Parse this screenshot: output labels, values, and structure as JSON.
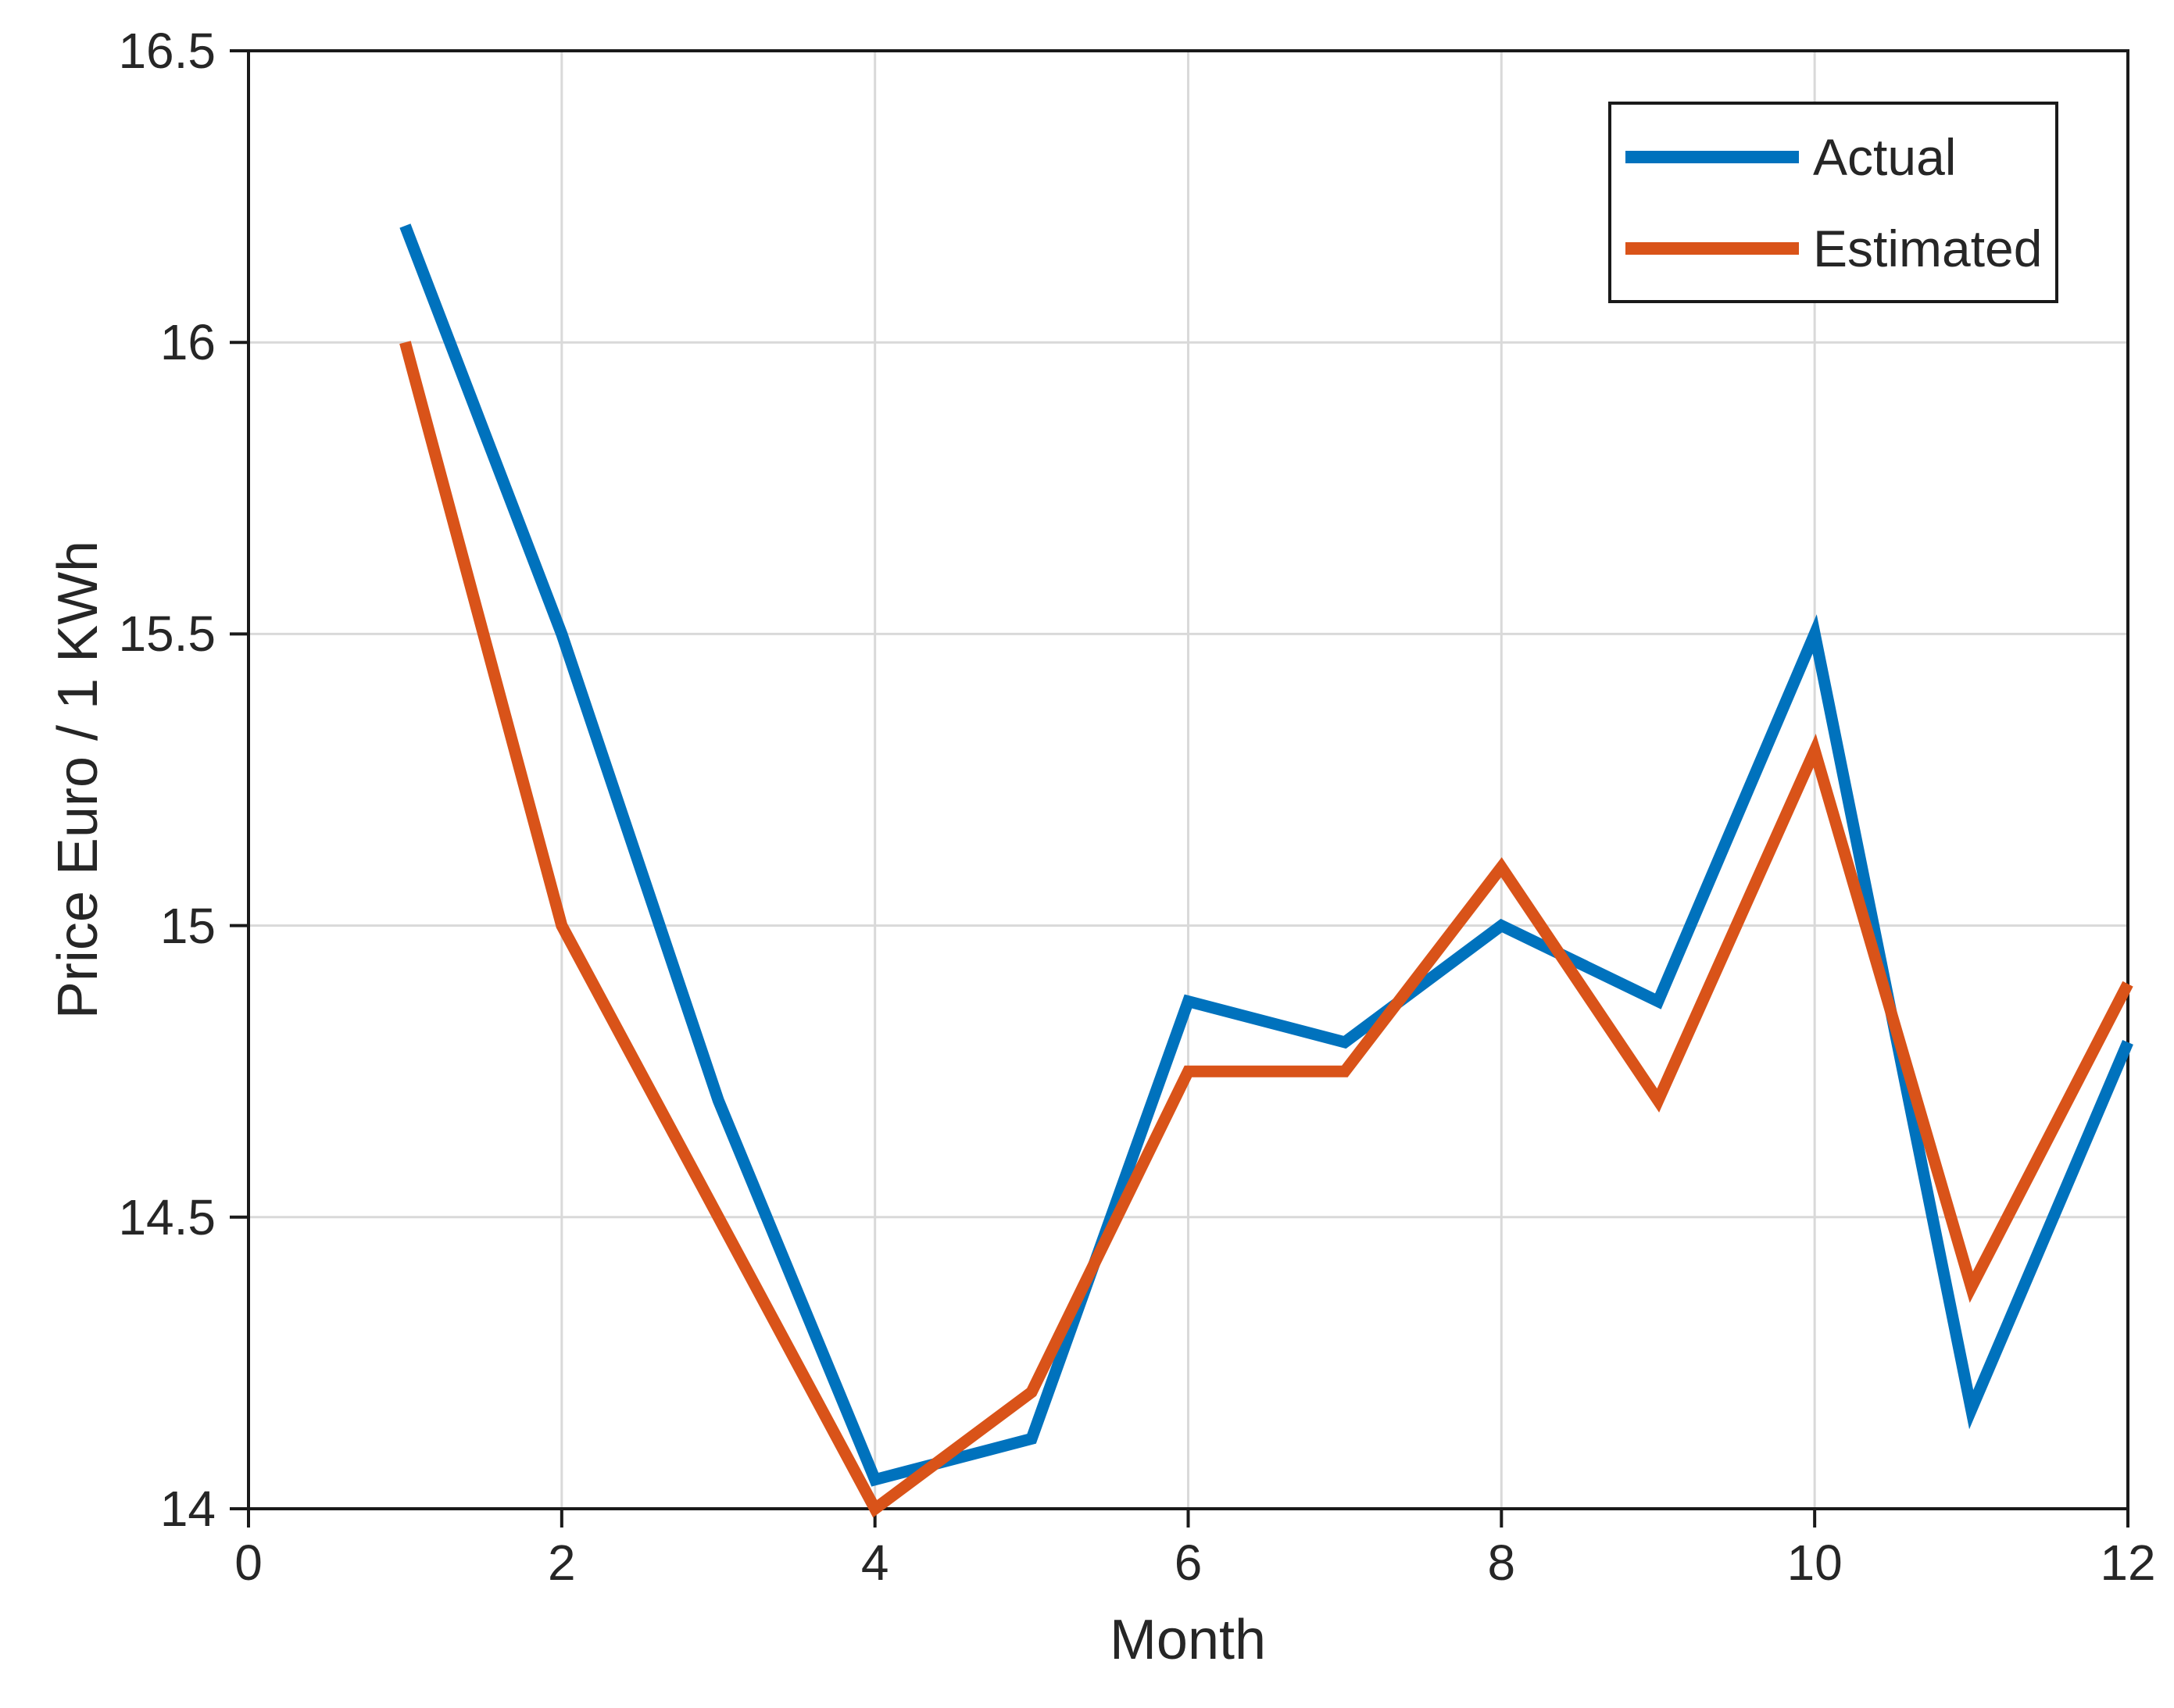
{
  "chart_data": {
    "type": "line",
    "title": "",
    "xlabel": "Month",
    "ylabel": "Price Euro / 1 KWh",
    "x": [
      1,
      2,
      3,
      4,
      5,
      6,
      7,
      8,
      9,
      10,
      11,
      12
    ],
    "series": [
      {
        "name": "Actual",
        "color": "#0072BD",
        "values": [
          16.2,
          15.5,
          14.7,
          14.05,
          14.12,
          14.87,
          14.8,
          15.0,
          14.87,
          15.5,
          14.17,
          14.8
        ]
      },
      {
        "name": "Estimated",
        "color": "#D95319",
        "values": [
          16.0,
          15.0,
          14.5,
          14.0,
          14.2,
          14.75,
          14.75,
          15.1,
          14.7,
          15.3,
          14.38,
          14.9
        ]
      }
    ],
    "xlim": [
      0,
      12
    ],
    "ylim": [
      14,
      16.5
    ],
    "xticks": [
      0,
      2,
      4,
      6,
      8,
      10,
      12
    ],
    "yticks": [
      14,
      14.5,
      15,
      15.5,
      16,
      16.5
    ],
    "grid": true,
    "legend_position": "top-right",
    "line_width": 15,
    "colors": {
      "grid": "#d9d9d9",
      "axis": "#1a1a1a",
      "text": "#262626",
      "background": "#ffffff"
    }
  }
}
